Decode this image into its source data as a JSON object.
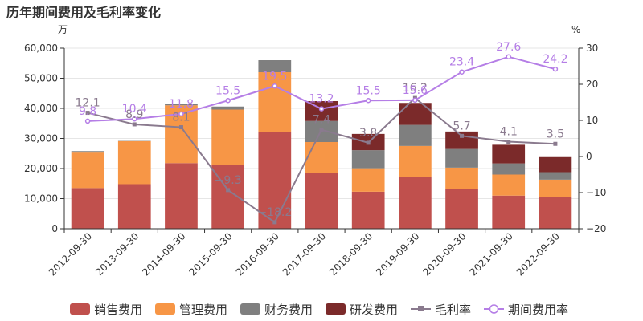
{
  "chart_data": {
    "type": "bar",
    "title": "历年期间费用及毛利率变化",
    "left_unit": "万",
    "right_unit": "%",
    "categories": [
      "2012-09-30",
      "2013-09-30",
      "2014-09-30",
      "2015-09-30",
      "2016-09-30",
      "2017-09-30",
      "2018-09-30",
      "2019-09-30",
      "2020-09-30",
      "2021-09-30",
      "2022-09-30"
    ],
    "ylim_left": [
      0,
      60000
    ],
    "yticks_left": [
      "0",
      "10,000",
      "20,000",
      "30,000",
      "40,000",
      "50,000",
      "60,000"
    ],
    "ylim_right": [
      -20,
      30
    ],
    "yticks_right": [
      "−20",
      "−10",
      "0",
      "10",
      "20",
      "30"
    ],
    "grid": true,
    "legend_position": "bottom",
    "bar_series": [
      {
        "name": "销售费用",
        "color": "#c0504d",
        "values": [
          13500,
          14800,
          21800,
          21300,
          32200,
          18400,
          12300,
          17200,
          13300,
          11000,
          10400
        ]
      },
      {
        "name": "管理费用",
        "color": "#f79646",
        "values": [
          11800,
          14300,
          19200,
          18300,
          19800,
          10400,
          7800,
          10300,
          7000,
          7000,
          5900
        ]
      },
      {
        "name": "财务费用",
        "color": "#7f7f7f",
        "values": [
          500,
          100,
          500,
          1000,
          4000,
          7000,
          6000,
          7000,
          6200,
          3700,
          2500
        ]
      },
      {
        "name": "研发费用",
        "color": "#7b2a2a",
        "values": [
          0,
          0,
          0,
          0,
          0,
          6600,
          5400,
          7300,
          5800,
          6200,
          5000
        ]
      }
    ],
    "line_series": [
      {
        "name": "毛利率",
        "color": "#8a7a8e",
        "marker": "square",
        "values": [
          12.1,
          8.9,
          8.1,
          -9.3,
          -18.2,
          7.4,
          3.8,
          16.2,
          5.7,
          4.1,
          3.5
        ],
        "labels": [
          "12.1",
          "8.9",
          "8.1",
          "−9.3",
          "−18.2",
          "7.4",
          "3.8",
          "16.2",
          "5.7",
          "4.1",
          "3.5"
        ]
      },
      {
        "name": "期间费用率",
        "color": "#b57ee6",
        "marker": "circle",
        "values": [
          9.8,
          10.4,
          11.8,
          15.5,
          19.5,
          13.2,
          15.5,
          15.6,
          23.4,
          27.6,
          24.2
        ],
        "labels": [
          "9.8",
          "10.4",
          "11.8",
          "15.5",
          "19.5",
          "13.2",
          "15.5",
          "15.6",
          "23.4",
          "27.6",
          "24.2"
        ]
      }
    ]
  }
}
